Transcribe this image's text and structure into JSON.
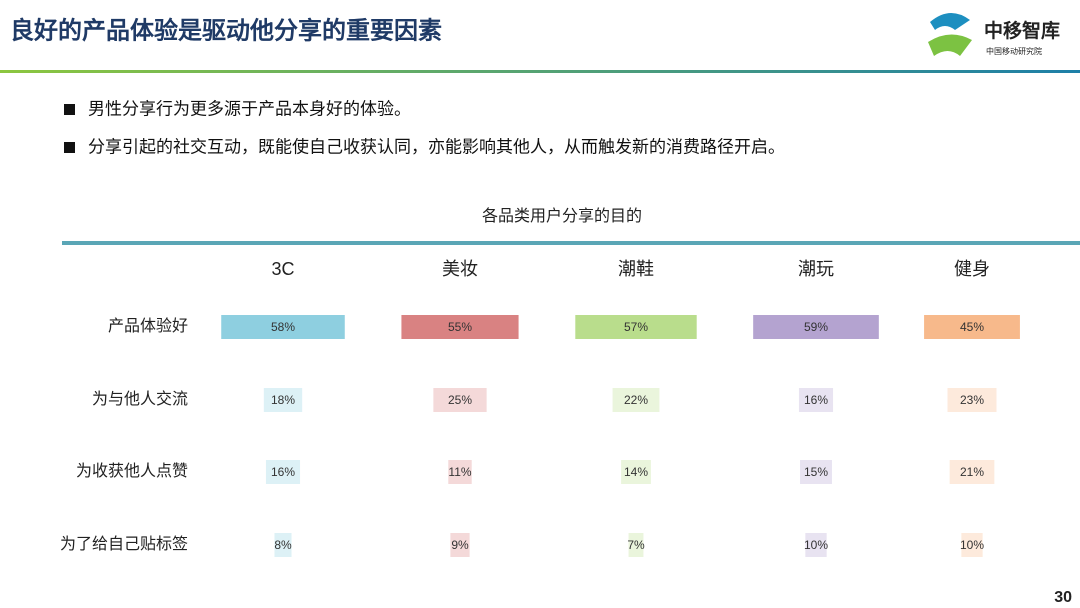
{
  "header": {
    "title": "良好的产品体验是驱动他分享的重要因素",
    "logo": "中移智库",
    "logo_sub": "中国移动研究院"
  },
  "bullets": [
    "男性分享行为更多源于产品本身好的体验。",
    "分享引起的社交互动，既能使自己收获认同，亦能影响其他人，从而触发新的消费路径开启。"
  ],
  "chart_data": {
    "type": "bar-matrix",
    "title": "各品类用户分享的目的",
    "categories": [
      "产品体验好",
      "为与他人交流",
      "为收获他人点赞",
      "为了给自己贴标签"
    ],
    "series": [
      {
        "name": "3C",
        "color": "#8ecfe0",
        "values": [
          58,
          18,
          16,
          8
        ],
        "value_labels": [
          "58%",
          "18%",
          "16%",
          "8%"
        ]
      },
      {
        "name": "美妆",
        "color": "#d98282",
        "values": [
          55,
          25,
          11,
          9
        ],
        "value_labels": [
          "55%",
          "25%",
          "11%",
          "9%"
        ]
      },
      {
        "name": "潮鞋",
        "color": "#b9dd8c",
        "values": [
          57,
          22,
          14,
          7
        ],
        "value_labels": [
          "57%",
          "22%",
          "14%",
          "7%"
        ]
      },
      {
        "name": "潮玩",
        "color": "#b4a3d0",
        "values": [
          59,
          16,
          15,
          10
        ],
        "value_labels": [
          "59%",
          "16%",
          "15%",
          "10%"
        ]
      },
      {
        "name": "健身",
        "color": "#f7b98b",
        "values": [
          45,
          23,
          21,
          10
        ],
        "value_labels": [
          "45%",
          "23%",
          "21%",
          "10%"
        ]
      }
    ]
  },
  "page_number": "30"
}
